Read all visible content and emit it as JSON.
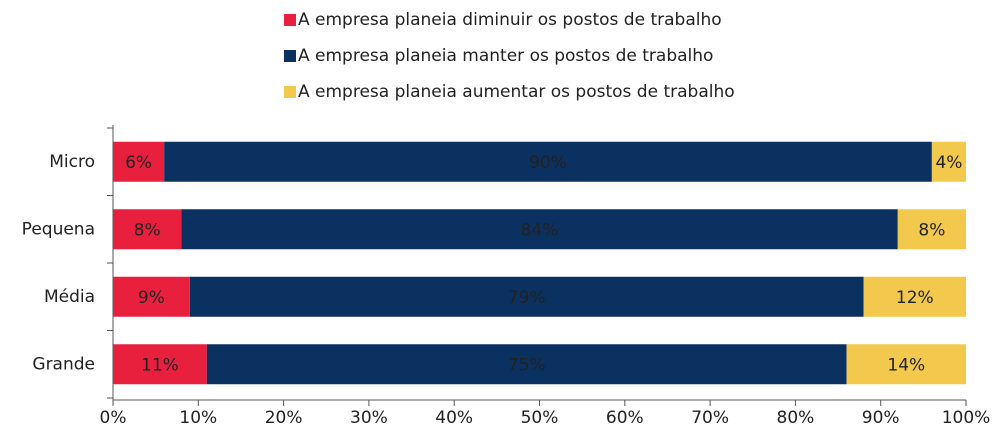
{
  "chart_data": {
    "type": "stacked_barh",
    "categories": [
      "Micro",
      "Pequena",
      "Média",
      "Grande"
    ],
    "series": [
      {
        "name": "A empresa planeia diminuir os postos de trabalho",
        "color": "#e8203e",
        "values": [
          6,
          8,
          9,
          11
        ],
        "value_labels": [
          "6%",
          "8%",
          "9%",
          "11%"
        ],
        "label_color": "#ffffff"
      },
      {
        "name": "A empresa planeia manter os postos de trabalho",
        "color": "#0b3161",
        "values": [
          90,
          84,
          79,
          75
        ],
        "value_labels": [
          "90%",
          "84%",
          "79%",
          "75%"
        ],
        "label_color": "#ffffff"
      },
      {
        "name": "A empresa planeia aumentar os postos de trabalho",
        "color": "#f2c94c",
        "values": [
          4,
          8,
          12,
          14
        ],
        "value_labels": [
          "4%",
          "8%",
          "12%",
          "14%"
        ],
        "label_color": "#222222"
      }
    ],
    "xlim": [
      0,
      100
    ],
    "xticks": [
      {
        "value": 0,
        "label": "0%"
      },
      {
        "value": 10,
        "label": "10%"
      },
      {
        "value": 20,
        "label": "20%"
      },
      {
        "value": 30,
        "label": "30%"
      },
      {
        "value": 40,
        "label": "40%"
      },
      {
        "value": 50,
        "label": "50%"
      },
      {
        "value": 60,
        "label": "60%"
      },
      {
        "value": 70,
        "label": "70%"
      },
      {
        "value": 80,
        "label": "80%"
      },
      {
        "value": 90,
        "label": "90%"
      },
      {
        "value": 100,
        "label": "100%"
      }
    ],
    "legend": "top"
  }
}
